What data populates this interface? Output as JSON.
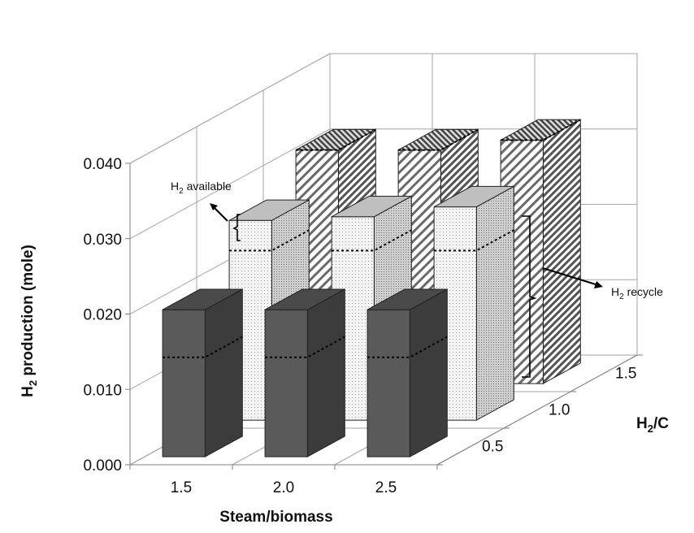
{
  "chart_data": {
    "type": "bar",
    "title": "",
    "ylabel": "H₂ production (mole)",
    "ylabel_main": "H",
    "ylabel_sub": "2",
    "ylabel_rest": " production (mole)",
    "xlabel": "Steam/biomass",
    "zlabel": "H₂/C",
    "zlabel_main": "H",
    "zlabel_sub": "2",
    "zlabel_rest": "/C",
    "ylim": [
      0,
      0.04
    ],
    "ytick_labels": [
      "0.000",
      "0.010",
      "0.020",
      "0.030",
      "0.040"
    ],
    "categories": [
      "1.5",
      "2.0",
      "2.5"
    ],
    "depth_categories": [
      "0.5",
      "1.0",
      "1.5"
    ],
    "series": [
      {
        "name": "0.5",
        "values": [
          0.0195,
          0.0195,
          0.0195
        ],
        "recycle": [
          0.0132,
          0.0132,
          0.0132
        ]
      },
      {
        "name": "1.0",
        "values": [
          0.0265,
          0.027,
          0.0283
        ],
        "recycle": [
          0.0225,
          0.0225,
          0.0225
        ]
      },
      {
        "name": "1.5",
        "values": [
          0.031,
          0.031,
          0.0323
        ],
        "recycle": [
          0.031,
          0.031,
          0.0323
        ]
      }
    ],
    "annotations": {
      "available_main": "H",
      "available_sub": "2",
      "available_rest": " available",
      "recycle_main": "H",
      "recycle_sub": "2",
      "recycle_rest": " recycle"
    },
    "colors": {
      "front_face": "#5a5a5a",
      "front_side": "#3c3c3c",
      "front_top": "#4a4a4a",
      "mid_face": "#f2f2f2",
      "mid_side": "#8c8c8c",
      "mid_top": "#bfbfbf",
      "back_face": "#9a9a9a",
      "back_side": "#7a7a7a"
    }
  }
}
